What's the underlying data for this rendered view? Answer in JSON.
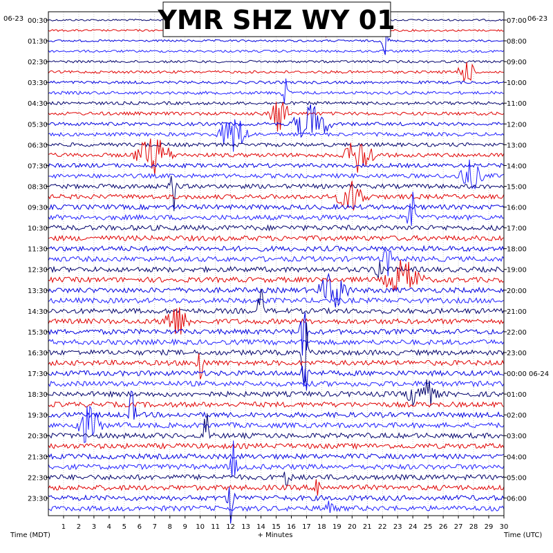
{
  "chart_data": {
    "type": "helicorder",
    "title": "YMR SHZ WY 01",
    "date_left": "06-23",
    "date_right": "06-23",
    "xlabel": "+ Minutes",
    "xlabel_left": "Time (MDT)",
    "xlabel_right": "Time (UTC)",
    "x_ticks": [
      "1",
      "2",
      "3",
      "4",
      "5",
      "6",
      "7",
      "8",
      "9",
      "10",
      "11",
      "12",
      "13",
      "14",
      "15",
      "16",
      "17",
      "18",
      "19",
      "20",
      "21",
      "22",
      "23",
      "24",
      "25",
      "26",
      "27",
      "28",
      "29",
      "30"
    ],
    "xlim": [
      0,
      30
    ],
    "left_labels": [
      "00:30",
      "01:30",
      "02:30",
      "03:30",
      "04:30",
      "05:30",
      "06:30",
      "07:30",
      "08:30",
      "09:30",
      "10:30",
      "11:30",
      "12:30",
      "13:30",
      "14:30",
      "15:30",
      "16:30",
      "17:30",
      "18:30",
      "19:30",
      "20:30",
      "21:30",
      "22:30",
      "23:30"
    ],
    "right_labels": [
      "07:00",
      "08:00",
      "09:00",
      "10:00",
      "11:00",
      "12:00",
      "13:00",
      "14:00",
      "15:00",
      "16:00",
      "17:00",
      "18:00",
      "19:00",
      "20:00",
      "21:00",
      "22:00",
      "23:00",
      "00:00 06-24",
      "01:00",
      "02:00",
      "03:00",
      "04:00",
      "05:00",
      "06:00"
    ],
    "trace_count": 48,
    "trace_colors": [
      "#00006b",
      "#e00000",
      "#0000e0",
      "#1f1fff"
    ],
    "grid": true,
    "events": [
      {
        "row": 1,
        "minute": 18.1,
        "amplitude": 2.2,
        "duration": 0.3
      },
      {
        "row": 2,
        "minute": 22.2,
        "amplitude": 2.4,
        "duration": 0.3
      },
      {
        "row": 5,
        "minute": 27.5,
        "amplitude": 1.2,
        "duration": 0.8
      },
      {
        "row": 7,
        "minute": 15.6,
        "amplitude": 1.6,
        "duration": 0.3
      },
      {
        "row": 9,
        "minute": 15.2,
        "amplitude": 2.0,
        "duration": 0.8
      },
      {
        "row": 10,
        "minute": 17.3,
        "amplitude": 2.0,
        "duration": 1.5
      },
      {
        "row": 11,
        "minute": 12.2,
        "amplitude": 2.0,
        "duration": 1.2
      },
      {
        "row": 13,
        "minute": 6.9,
        "amplitude": 2.0,
        "duration": 1.5
      },
      {
        "row": 13,
        "minute": 20.5,
        "amplitude": 2.0,
        "duration": 1.2
      },
      {
        "row": 15,
        "minute": 27.8,
        "amplitude": 1.5,
        "duration": 1.0
      },
      {
        "row": 16,
        "minute": 8.2,
        "amplitude": 3.0,
        "duration": 0.3
      },
      {
        "row": 17,
        "minute": 20.0,
        "amplitude": 1.6,
        "duration": 1.2
      },
      {
        "row": 19,
        "minute": 23.9,
        "amplitude": 3.5,
        "duration": 0.3
      },
      {
        "row": 23,
        "minute": 22.3,
        "amplitude": 3.0,
        "duration": 0.3
      },
      {
        "row": 24,
        "minute": 21.8,
        "amplitude": 2.5,
        "duration": 0.3
      },
      {
        "row": 25,
        "minute": 23.4,
        "amplitude": 2.0,
        "duration": 1.5
      },
      {
        "row": 26,
        "minute": 18.8,
        "amplitude": 2.0,
        "duration": 1.2
      },
      {
        "row": 28,
        "minute": 14.0,
        "amplitude": 2.5,
        "duration": 0.3
      },
      {
        "row": 29,
        "minute": 8.4,
        "amplitude": 1.6,
        "duration": 1.2
      },
      {
        "row": 30,
        "minute": 16.8,
        "amplitude": 5.0,
        "duration": 0.3
      },
      {
        "row": 32,
        "minute": 16.9,
        "amplitude": 4.0,
        "duration": 0.3
      },
      {
        "row": 33,
        "minute": 10.0,
        "amplitude": 2.5,
        "duration": 0.3
      },
      {
        "row": 34,
        "minute": 16.9,
        "amplitude": 3.0,
        "duration": 0.3
      },
      {
        "row": 36,
        "minute": 24.6,
        "amplitude": 1.8,
        "duration": 1.2
      },
      {
        "row": 38,
        "minute": 5.5,
        "amplitude": 2.5,
        "duration": 0.3
      },
      {
        "row": 39,
        "minute": 2.6,
        "amplitude": 1.8,
        "duration": 1.2
      },
      {
        "row": 40,
        "minute": 10.4,
        "amplitude": 2.5,
        "duration": 0.3
      },
      {
        "row": 43,
        "minute": 12.2,
        "amplitude": 2.5,
        "duration": 0.3
      },
      {
        "row": 44,
        "minute": 15.8,
        "amplitude": 2.0,
        "duration": 0.3
      },
      {
        "row": 45,
        "minute": 17.8,
        "amplitude": 2.0,
        "duration": 0.3
      },
      {
        "row": 46,
        "minute": 12.0,
        "amplitude": 2.5,
        "duration": 0.3
      },
      {
        "row": 47,
        "minute": 18.5,
        "amplitude": 1.5,
        "duration": 0.3
      }
    ]
  }
}
